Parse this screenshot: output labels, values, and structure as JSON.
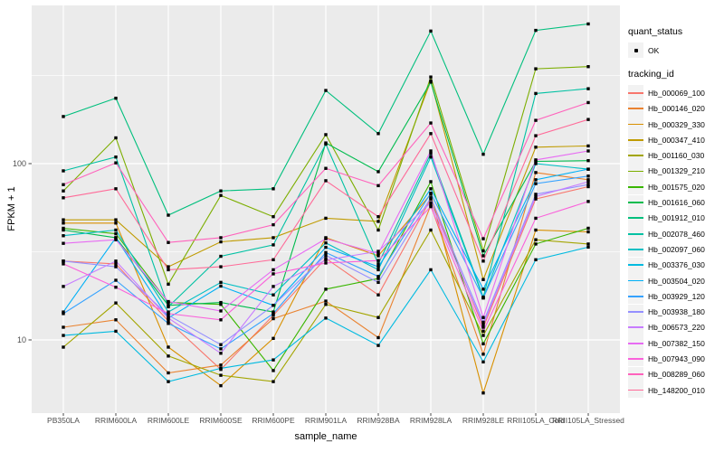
{
  "chart_data": {
    "type": "line",
    "title": "",
    "xlabel": "sample_name",
    "ylabel": "FPKM + 1",
    "y_scale": "log10",
    "y_axis_ticks": [
      10,
      100
    ],
    "y_minor_gridlines": [
      31.6,
      316
    ],
    "ylim": [
      4,
      780
    ],
    "grid": true,
    "legend_position": "right",
    "panel_bg": "#EBEBEB",
    "grid_color": "#FFFFFF",
    "axis_text_color": "#4D4D4D",
    "tick_mark_color": "#333333",
    "point_color": "#000000",
    "legend_key_bg": "#F2F2F2",
    "legend": {
      "quant_title": "quant_status",
      "quant_items": [
        {
          "label": "OK",
          "marker": "point"
        }
      ],
      "tracking_title": "tracking_id"
    },
    "categories": [
      "PB350LA",
      "RRIM600LA",
      "RRIM600LE",
      "RRIM600SE",
      "RRIM600PE",
      "RRIM901LA",
      "RRIM928BA",
      "RRIM928LA",
      "RRIM928LE",
      "RRII105LA_Cold",
      "RRII105LA_Stressed"
    ],
    "series": [
      {
        "name": "Hb_000069_100",
        "color": "#F8766D",
        "values": [
          28,
          27,
          12.8,
          6.8,
          13.8,
          29,
          18,
          63,
          11.8,
          63,
          74
        ]
      },
      {
        "name": "Hb_000146_020",
        "color": "#EA8331",
        "values": [
          11.8,
          13,
          6.5,
          7.2,
          13.2,
          16.6,
          10.3,
          58,
          8.3,
          89,
          81
        ]
      },
      {
        "name": "Hb_000329_330",
        "color": "#D89000",
        "values": [
          46,
          46,
          9.1,
          5.5,
          10.2,
          38,
          30,
          67,
          5,
          42,
          41
        ]
      },
      {
        "name": "Hb_000347_410",
        "color": "#C09B00",
        "values": [
          48,
          48,
          26,
          36,
          38,
          49,
          47,
          295,
          22,
          124,
          126
        ]
      },
      {
        "name": "Hb_001160_030",
        "color": "#A3A500",
        "values": [
          9.1,
          16.2,
          8.1,
          6.3,
          5.8,
          15.9,
          13.4,
          42,
          10.6,
          37,
          35
        ]
      },
      {
        "name": "Hb_001329_210",
        "color": "#7CAE00",
        "values": [
          70,
          140,
          20.7,
          66,
          50,
          146,
          42,
          310,
          32,
          345,
          355
        ]
      },
      {
        "name": "Hb_001575_020",
        "color": "#39B600",
        "values": [
          43,
          40,
          16.3,
          15.9,
          6.7,
          19.4,
          22.3,
          79,
          9.5,
          35,
          43
        ]
      },
      {
        "name": "Hb_001616_060",
        "color": "#00BB4E",
        "values": [
          42,
          38,
          15.7,
          16.3,
          14.4,
          131,
          90,
          290,
          30,
          103,
          104
        ]
      },
      {
        "name": "Hb_001912_010",
        "color": "#00BF7D",
        "values": [
          185,
          235,
          51,
          70,
          72,
          260,
          148,
          565,
          113,
          570,
          620
        ]
      },
      {
        "name": "Hb_002078_460",
        "color": "#00C1A3",
        "values": [
          91,
          109,
          15.4,
          29.8,
          34.6,
          129,
          27,
          114,
          17.5,
          250,
          266
        ]
      },
      {
        "name": "Hb_002097_060",
        "color": "#00BFC4",
        "values": [
          39,
          42,
          14.4,
          21.2,
          18,
          35.5,
          25,
          109,
          17.3,
          100,
          93
        ]
      },
      {
        "name": "Hb_003376_030",
        "color": "#00BAE0",
        "values": [
          10.6,
          11.2,
          5.8,
          6.9,
          7.7,
          13.3,
          9.3,
          25,
          7.5,
          28.5,
          33.6
        ]
      },
      {
        "name": "Hb_003504_020",
        "color": "#00B0F6",
        "values": [
          14.4,
          38,
          13.3,
          20.2,
          15.7,
          33.5,
          26,
          72,
          19.4,
          81,
          93
        ]
      },
      {
        "name": "Hb_003929_120",
        "color": "#35A2FF",
        "values": [
          14.1,
          21.8,
          12.4,
          8.9,
          14.1,
          31.3,
          22.9,
          68,
          17.3,
          77,
          85
        ]
      },
      {
        "name": "Hb_003938_180",
        "color": "#9590FF",
        "values": [
          28,
          26,
          13.8,
          9.4,
          15.7,
          30.2,
          21.2,
          64,
          12.6,
          67,
          76
        ]
      },
      {
        "name": "Hb_006573_220",
        "color": "#C77CFF",
        "values": [
          20.1,
          28,
          13.3,
          8.4,
          20.1,
          28.4,
          31.8,
          60,
          12.2,
          65,
          79
        ]
      },
      {
        "name": "Hb_007382_150",
        "color": "#E76BF3",
        "values": [
          35.3,
          37,
          16.5,
          14.6,
          25,
          37.5,
          30.9,
          118,
          13.4,
          105,
          118
        ]
      },
      {
        "name": "Hb_007943_090",
        "color": "#FA62DB",
        "values": [
          27,
          19.9,
          14.1,
          13,
          23.7,
          27.3,
          28.2,
          57,
          11.2,
          49,
          61
        ]
      },
      {
        "name": "Hb_008289_060",
        "color": "#FF62BC",
        "values": [
          76,
          101,
          35.7,
          38,
          45,
          94,
          75,
          170,
          37.5,
          176,
          222
        ]
      },
      {
        "name": "Hb_148200_010",
        "color": "#FF6A98",
        "values": [
          64,
          72,
          25,
          26,
          28.5,
          80,
          50,
          148,
          28,
          144,
          178
        ]
      }
    ]
  }
}
